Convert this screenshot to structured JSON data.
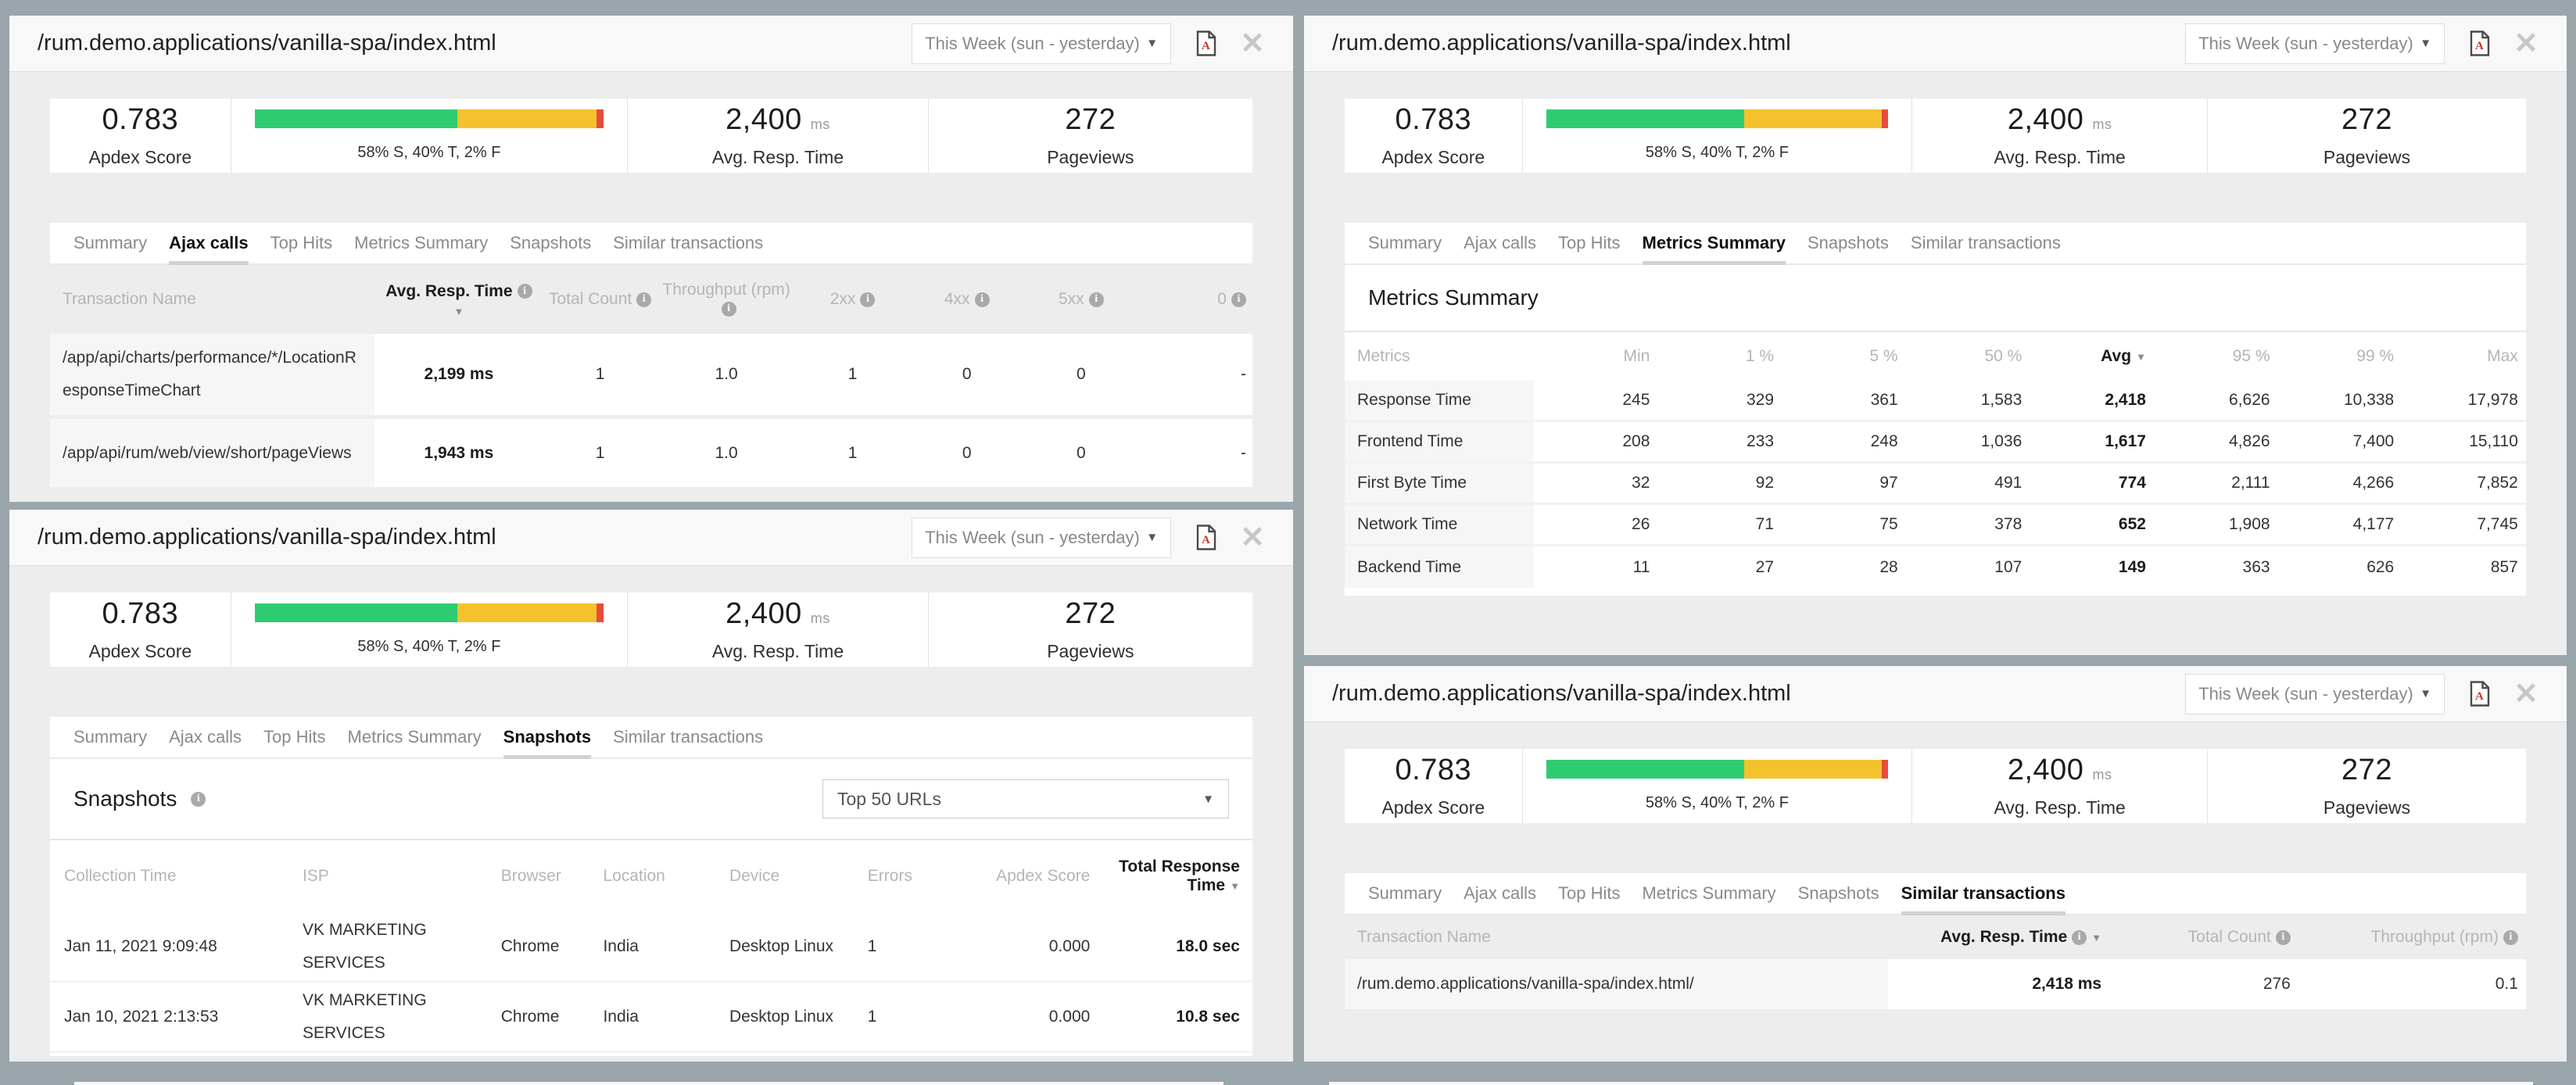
{
  "icons": {
    "info": "i",
    "sort_caret": "▼",
    "dropdown_caret": "▼",
    "close": "✕"
  },
  "colors": {
    "background": "#9aa5ac",
    "panel": "#ededee",
    "satisfied": "#2ecc71",
    "tolerating": "#f4c22c",
    "frustrated": "#e74c3c"
  },
  "shared": {
    "title": "/rum.demo.applications/vanilla-spa/index.html",
    "period": "This Week (sun - yesterday)",
    "tabs": [
      "Summary",
      "Ajax calls",
      "Top Hits",
      "Metrics Summary",
      "Snapshots",
      "Similar transactions"
    ],
    "stats": {
      "apdex": {
        "value": "0.783",
        "label": "Apdex Score"
      },
      "bar": {
        "label": "58% S, 40% T, 2% F",
        "green_pct": 58,
        "yellow_pct": 40,
        "red_pct": 2
      },
      "resp": {
        "value": "2,400",
        "unit": "ms",
        "label": "Avg. Resp. Time"
      },
      "pageviews": {
        "value": "272",
        "label": "Pageviews"
      }
    }
  },
  "panel_tl": {
    "active_tab": "Ajax calls",
    "table": {
      "headers": {
        "name": "Transaction Name",
        "avg": "Avg. Resp. Time",
        "count": "Total Count",
        "rpm": "Throughput (rpm)",
        "s2xx": "2xx",
        "s4xx": "4xx",
        "s5xx": "5xx",
        "s0": "0"
      },
      "rows": [
        {
          "name": "/app/api/charts/performance/*/LocationResponseTimeChart",
          "avg": "2,199 ms",
          "count": "1",
          "rpm": "1.0",
          "s2xx": "1",
          "s4xx": "0",
          "s5xx": "0",
          "s0": "-"
        },
        {
          "name": "/app/api/rum/web/view/short/pageViews",
          "avg": "1,943 ms",
          "count": "1",
          "rpm": "1.0",
          "s2xx": "1",
          "s4xx": "0",
          "s5xx": "0",
          "s0": "-"
        }
      ]
    }
  },
  "panel_tr": {
    "active_tab": "Metrics Summary",
    "heading": "Metrics Summary",
    "table": {
      "headers": {
        "metric": "Metrics",
        "min": "Min",
        "p1": "1 %",
        "p5": "5 %",
        "p50": "50 %",
        "avg": "Avg",
        "p95": "95 %",
        "p99": "99 %",
        "max": "Max"
      },
      "rows": [
        {
          "metric": "Response Time",
          "min": "245",
          "p1": "329",
          "p5": "361",
          "p50": "1,583",
          "avg": "2,418",
          "p95": "6,626",
          "p99": "10,338",
          "max": "17,978"
        },
        {
          "metric": "Frontend Time",
          "min": "208",
          "p1": "233",
          "p5": "248",
          "p50": "1,036",
          "avg": "1,617",
          "p95": "4,826",
          "p99": "7,400",
          "max": "15,110"
        },
        {
          "metric": "First Byte Time",
          "min": "32",
          "p1": "92",
          "p5": "97",
          "p50": "491",
          "avg": "774",
          "p95": "2,111",
          "p99": "4,266",
          "max": "7,852"
        },
        {
          "metric": "Network Time",
          "min": "26",
          "p1": "71",
          "p5": "75",
          "p50": "378",
          "avg": "652",
          "p95": "1,908",
          "p99": "4,177",
          "max": "7,745"
        },
        {
          "metric": "Backend Time",
          "min": "11",
          "p1": "27",
          "p5": "28",
          "p50": "107",
          "avg": "149",
          "p95": "363",
          "p99": "626",
          "max": "857"
        }
      ]
    }
  },
  "panel_bl": {
    "active_tab": "Snapshots",
    "heading": "Snapshots",
    "filter": "Top 50 URLs",
    "table": {
      "headers": {
        "time": "Collection Time",
        "isp": "ISP",
        "browser": "Browser",
        "location": "Location",
        "device": "Device",
        "errors": "Errors",
        "apdex": "Apdex Score",
        "total": "Total Response Time"
      },
      "rows": [
        {
          "time": "Jan 11, 2021 9:09:48",
          "isp": "VK MARKETING SERVICES",
          "browser": "Chrome",
          "location": "India",
          "device": "Desktop Linux",
          "errors": "1",
          "apdex": "0.000",
          "total": "18.0 sec"
        },
        {
          "time": "Jan 10, 2021 2:13:53",
          "isp": "VK MARKETING SERVICES",
          "browser": "Chrome",
          "location": "India",
          "device": "Desktop Linux",
          "errors": "1",
          "apdex": "0.000",
          "total": "10.8 sec"
        }
      ]
    }
  },
  "panel_br": {
    "active_tab": "Similar transactions",
    "table": {
      "headers": {
        "name": "Transaction Name",
        "avg": "Avg. Resp. Time",
        "count": "Total Count",
        "rpm": "Throughput (rpm)"
      },
      "rows": [
        {
          "name": "/rum.demo.applications/vanilla-spa/index.html/",
          "avg": "2,418 ms",
          "count": "276",
          "rpm": "0.1"
        }
      ]
    }
  }
}
